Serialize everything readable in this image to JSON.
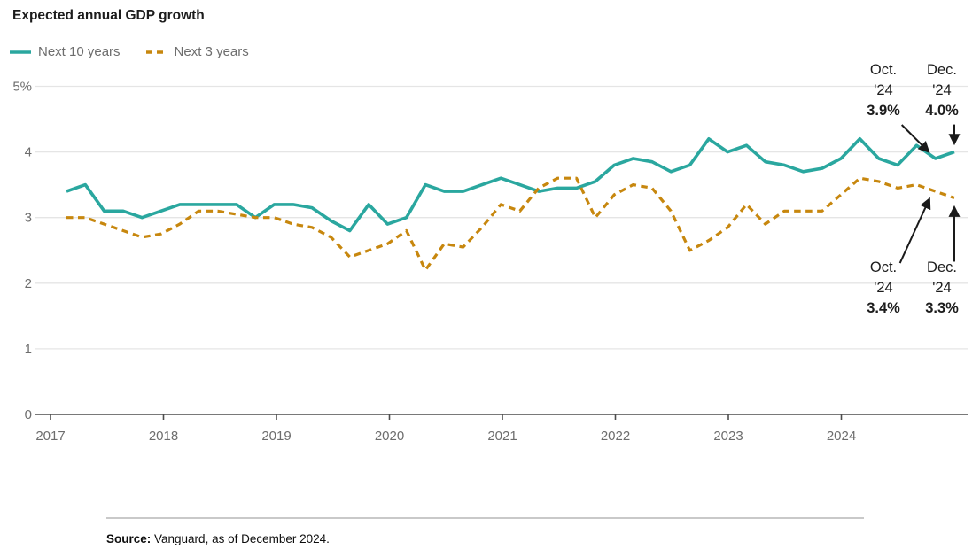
{
  "title": "Expected annual GDP growth",
  "legend": [
    {
      "label": "Next 10 years",
      "color": "#2aa79f",
      "line_style": "solid"
    },
    {
      "label": "Next 3 years",
      "color": "#c7870e",
      "line_style": "dashed"
    }
  ],
  "annotations": {
    "top_oct": {
      "line1": "Oct.",
      "line2": "'24",
      "value": "3.9%"
    },
    "top_dec": {
      "line1": "Dec.",
      "line2": "'24",
      "value": "4.0%"
    },
    "bot_oct": {
      "line1": "Oct.",
      "line2": "'24",
      "value": "3.4%"
    },
    "bot_dec": {
      "line1": "Dec.",
      "line2": "'24",
      "value": "3.3%"
    }
  },
  "source": {
    "label": "Source:",
    "text": " Vanguard, as of December 2024."
  },
  "chart_data": {
    "type": "line",
    "title": "Expected annual GDP growth",
    "ylabel": "Expected annual GDP growth (%)",
    "ylim": [
      0,
      5
    ],
    "grid": "horizontal",
    "legend_position": "top-left",
    "x_tick_labels": [
      "2017",
      "2018",
      "2019",
      "2020",
      "2021",
      "2022",
      "2023",
      "2024"
    ],
    "y_tick_labels": [
      "5%",
      "4",
      "3",
      "2",
      "1",
      "0"
    ],
    "x_start_label": "Feb 2017",
    "x_end_label": "Dec 2024",
    "points_per_year": 6,
    "series": [
      {
        "name": "Next 10 years",
        "color": "#2aa79f",
        "line_style": "solid",
        "values": [
          3.4,
          3.5,
          3.1,
          3.1,
          3.0,
          3.1,
          3.2,
          3.2,
          3.2,
          3.2,
          3.0,
          3.2,
          3.2,
          3.15,
          2.95,
          2.8,
          3.2,
          2.9,
          3.0,
          3.5,
          3.4,
          3.4,
          3.5,
          3.6,
          3.5,
          3.4,
          3.45,
          3.45,
          3.55,
          3.8,
          3.9,
          3.85,
          3.7,
          3.8,
          4.2,
          4.0,
          4.1,
          3.85,
          3.8,
          3.7,
          3.75,
          3.9,
          4.2,
          3.9,
          3.8,
          4.1,
          3.9,
          4.0
        ]
      },
      {
        "name": "Next 3 years",
        "color": "#c7870e",
        "line_style": "dashed",
        "values": [
          3.0,
          3.0,
          2.9,
          2.8,
          2.7,
          2.75,
          2.9,
          3.1,
          3.1,
          3.05,
          3.0,
          3.0,
          2.9,
          2.85,
          2.7,
          2.4,
          2.5,
          2.6,
          2.8,
          2.2,
          2.6,
          2.55,
          2.85,
          3.2,
          3.1,
          3.45,
          3.6,
          3.6,
          3.0,
          3.35,
          3.5,
          3.45,
          3.1,
          2.5,
          2.65,
          2.85,
          3.2,
          2.9,
          3.1,
          3.1,
          3.1,
          3.35,
          3.6,
          3.55,
          3.45,
          3.5,
          3.4,
          3.3
        ]
      }
    ],
    "callouts": [
      {
        "series": "Next 10 years",
        "point": "Oct. '24",
        "value": 3.9
      },
      {
        "series": "Next 10 years",
        "point": "Dec. '24",
        "value": 4.0
      },
      {
        "series": "Next 3 years",
        "point": "Oct. '24",
        "value": 3.4
      },
      {
        "series": "Next 3 years",
        "point": "Dec. '24",
        "value": 3.3
      }
    ]
  }
}
